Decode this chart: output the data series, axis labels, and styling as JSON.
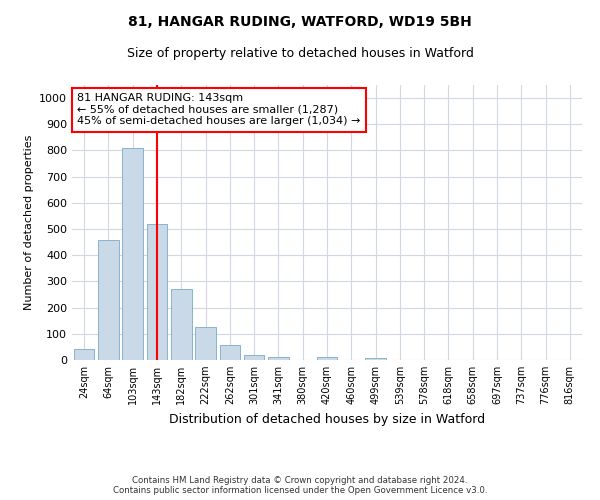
{
  "title_line1": "81, HANGAR RUDING, WATFORD, WD19 5BH",
  "title_line2": "Size of property relative to detached houses in Watford",
  "xlabel": "Distribution of detached houses by size in Watford",
  "ylabel": "Number of detached properties",
  "footer_line1": "Contains HM Land Registry data © Crown copyright and database right 2024.",
  "footer_line2": "Contains public sector information licensed under the Open Government Licence v3.0.",
  "categories": [
    "24sqm",
    "64sqm",
    "103sqm",
    "143sqm",
    "182sqm",
    "222sqm",
    "262sqm",
    "301sqm",
    "341sqm",
    "380sqm",
    "420sqm",
    "460sqm",
    "499sqm",
    "539sqm",
    "578sqm",
    "618sqm",
    "658sqm",
    "697sqm",
    "737sqm",
    "776sqm",
    "816sqm"
  ],
  "values": [
    42,
    460,
    810,
    520,
    270,
    125,
    57,
    20,
    12,
    0,
    11,
    0,
    8,
    0,
    0,
    0,
    0,
    0,
    0,
    0,
    0
  ],
  "bar_color": "#c9d9e8",
  "bar_edge_color": "#7aaac8",
  "vline_color": "red",
  "ylim": [
    0,
    1050
  ],
  "yticks": [
    0,
    100,
    200,
    300,
    400,
    500,
    600,
    700,
    800,
    900,
    1000
  ],
  "annotation_title": "81 HANGAR RUDING: 143sqm",
  "annotation_line1": "← 55% of detached houses are smaller (1,287)",
  "annotation_line2": "45% of semi-detached houses are larger (1,034) →",
  "annotation_box_color": "white",
  "annotation_box_edgecolor": "red",
  "bg_color": "white",
  "grid_color": "#d0d8e4",
  "vline_position": 3.5
}
